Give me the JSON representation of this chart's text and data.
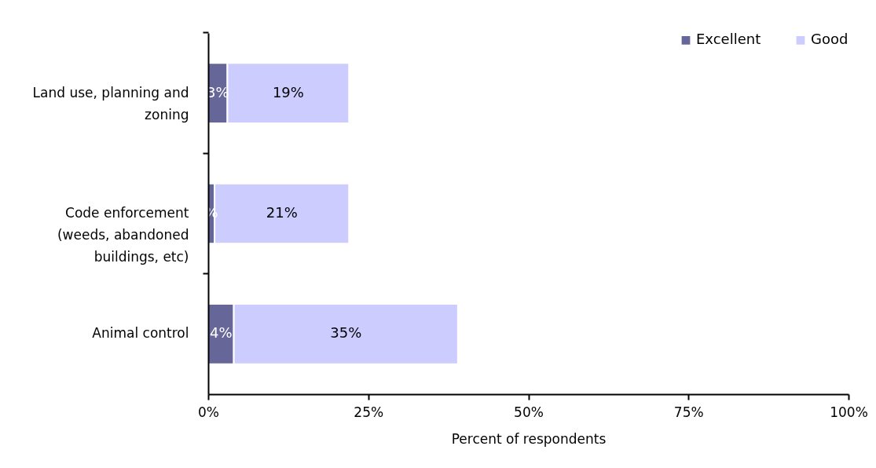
{
  "chart_data": {
    "type": "bar",
    "orientation": "horizontal",
    "stacked": true,
    "xlabel": "Percent of respondents",
    "categories": [
      "Land use, planning and zoning",
      "Code enforcement (weeds, abandoned buildings, etc)",
      "Animal control"
    ],
    "series": [
      {
        "name": "Excellent",
        "color": "#666699",
        "values": [
          3,
          1,
          4
        ],
        "value_labels": [
          "3%",
          "%",
          "4%"
        ]
      },
      {
        "name": "Good",
        "color": "#ccccff",
        "values": [
          19,
          21,
          35
        ],
        "value_labels": [
          "19%",
          "21%",
          "35%"
        ]
      }
    ],
    "xlim": [
      0,
      100
    ],
    "xticks": [
      {
        "value": 0,
        "label": "0%"
      },
      {
        "value": 25,
        "label": "25%"
      },
      {
        "value": 50,
        "label": "50%"
      },
      {
        "value": 75,
        "label": "75%"
      },
      {
        "value": 100,
        "label": "100%"
      }
    ],
    "grid": false,
    "legend": "top right"
  }
}
